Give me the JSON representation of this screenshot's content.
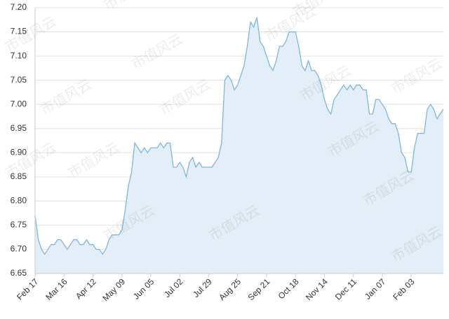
{
  "watermark": "市值风云",
  "chart_data": {
    "type": "area",
    "categories": [
      "Feb 17",
      null,
      null,
      null,
      null,
      null,
      null,
      null,
      null,
      "Mar 16",
      null,
      null,
      null,
      null,
      null,
      null,
      null,
      null,
      "Apr 12",
      null,
      null,
      null,
      null,
      null,
      null,
      null,
      null,
      "May 09",
      null,
      null,
      null,
      null,
      null,
      null,
      null,
      null,
      "Jun 05",
      null,
      null,
      null,
      null,
      null,
      null,
      null,
      null,
      "Jul 02",
      null,
      null,
      null,
      null,
      null,
      null,
      null,
      null,
      "Jul 29",
      null,
      null,
      null,
      null,
      null,
      null,
      null,
      null,
      "Aug 25",
      null,
      null,
      null,
      null,
      null,
      null,
      null,
      null,
      "Sep 21",
      null,
      null,
      null,
      null,
      null,
      null,
      null,
      null,
      "Oct 18",
      null,
      null,
      null,
      null,
      null,
      null,
      null,
      null,
      "Nov 14",
      null,
      null,
      null,
      null,
      null,
      null,
      null,
      null,
      "Dec 11",
      null,
      null,
      null,
      null,
      null,
      null,
      null,
      null,
      "Jan 07",
      null,
      null,
      null,
      null,
      null,
      null,
      null,
      null,
      "Feb 03",
      null,
      null,
      null,
      null,
      null,
      null,
      null,
      null,
      null,
      null
    ],
    "series": [
      {
        "color": "#7fb6dd",
        "fill": "#e3eef8",
        "values": [
          6.77,
          6.72,
          6.7,
          6.69,
          6.7,
          6.71,
          6.71,
          6.72,
          6.72,
          6.71,
          6.7,
          6.71,
          6.72,
          6.72,
          6.71,
          6.71,
          6.72,
          6.71,
          6.71,
          6.7,
          6.7,
          6.69,
          6.7,
          6.72,
          6.73,
          6.73,
          6.73,
          6.74,
          6.78,
          6.83,
          6.86,
          6.92,
          6.91,
          6.9,
          6.91,
          6.9,
          6.91,
          6.91,
          6.91,
          6.92,
          6.91,
          6.92,
          6.92,
          6.87,
          6.87,
          6.88,
          6.87,
          6.85,
          6.88,
          6.89,
          6.87,
          6.88,
          6.87,
          6.87,
          6.87,
          6.87,
          6.88,
          6.89,
          6.92,
          7.05,
          7.06,
          7.05,
          7.03,
          7.04,
          7.06,
          7.08,
          7.12,
          7.17,
          7.16,
          7.18,
          7.13,
          7.12,
          7.1,
          7.08,
          7.07,
          7.09,
          7.12,
          7.12,
          7.13,
          7.15,
          7.15,
          7.15,
          7.12,
          7.08,
          7.07,
          7.09,
          7.07,
          7.07,
          7.06,
          7.04,
          7.01,
          6.99,
          6.98,
          7.01,
          7.02,
          7.03,
          7.04,
          7.03,
          7.04,
          7.03,
          7.04,
          7.04,
          7.03,
          7.03,
          6.98,
          6.98,
          7.01,
          7.01,
          7.0,
          6.99,
          6.97,
          6.96,
          6.96,
          6.94,
          6.9,
          6.89,
          6.86,
          6.86,
          6.91,
          6.94,
          6.94,
          6.94,
          6.99,
          7.0,
          6.99,
          6.97,
          6.98,
          6.99
        ]
      }
    ],
    "ylim": [
      6.65,
      7.2
    ],
    "yticks": [
      6.65,
      {
        "value": 6.7,
        "label": "6.70"
      },
      6.75,
      {
        "value": 6.8,
        "label": "6.80"
      },
      6.85,
      {
        "value": 6.9,
        "label": "6.90"
      },
      6.95,
      {
        "value": 7.0,
        "label": "7.00"
      },
      7.05,
      {
        "value": 7.1,
        "label": "7.10"
      },
      7.15,
      {
        "value": 7.2,
        "label": "7.20"
      }
    ],
    "grid": true
  }
}
